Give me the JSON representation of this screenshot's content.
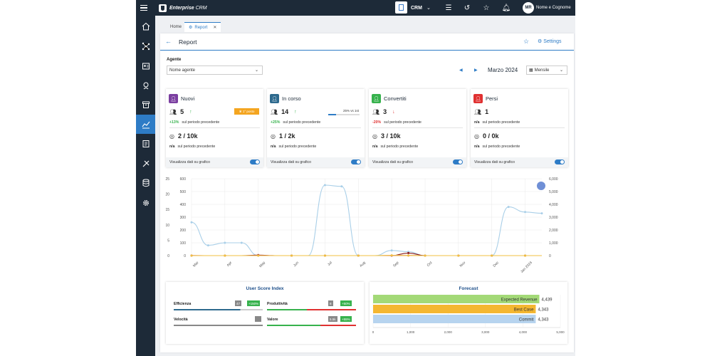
{
  "app": {
    "brand": "Enterprise",
    "brand_suffix": "CRM",
    "module": "CRM",
    "user_initials": "MR",
    "user_name": "Nome e Cognome"
  },
  "tabs": [
    {
      "label": "Home"
    },
    {
      "label": "Report"
    }
  ],
  "header": {
    "title": "Report",
    "settings_label": "Settings"
  },
  "filters": {
    "agent_label": "Agente",
    "agent_value": "Nome agente",
    "month": "Marzo 2024",
    "period": "Mensile"
  },
  "kpis": [
    {
      "name": "Nuovi",
      "color": "#7b3fa0",
      "count": "5",
      "badge": "1° posto",
      "delta": "+13%",
      "delta_color": "#37b24d",
      "delta_text": "sul periodo precedente",
      "target": "2",
      "target_total": "/ 10k",
      "target_delta": "n/a",
      "target_delta_text": "sul periodo precedente",
      "footer": "Visualizza dati su grafico"
    },
    {
      "name": "In corso",
      "color": "#2e6a8e",
      "count": "14",
      "progress_label": "25% vs 1st",
      "progress": 0.25,
      "delta": "+25%",
      "delta_color": "#37b24d",
      "delta_text": "sul periodo precedente",
      "target": "1",
      "target_total": "/ 2k",
      "target_delta": "n/a",
      "target_delta_text": "sul periodo precedente",
      "footer": "Visualizza dati su grafico"
    },
    {
      "name": "Convertiti",
      "color": "#37b24d",
      "count": "3",
      "delta": "-20%",
      "delta_color": "#e03131",
      "delta_text": "sul periodo precedente",
      "target": "3",
      "target_total": "/ 10k",
      "target_delta": "n/a",
      "target_delta_text": "sul periodo precedente",
      "footer": "Visualizza dati su grafico"
    },
    {
      "name": "Persi",
      "color": "#e03131",
      "count": "1",
      "delta": "n/a",
      "delta_color": "#333333",
      "delta_text": "sul periodo precedente",
      "target": "0",
      "target_total": "/ 0k",
      "target_delta": "n/a",
      "target_delta_text": "sul periodo precedente",
      "footer": "Visualizza dati su grafico"
    }
  ],
  "chart_data": [
    {
      "type": "line",
      "categories": [
        "Mar",
        "Apr",
        "May",
        "Jun",
        "Jul",
        "Aug",
        "Sep",
        "Oct",
        "Nov",
        "Dec",
        "Jan 2024"
      ],
      "y_axis_1": {
        "ticks": [
          "0",
          "5",
          "10",
          "15",
          "20",
          "25"
        ]
      },
      "y_axis_2": {
        "ticks": [
          "0",
          "100",
          "200",
          "300",
          "400",
          "500",
          "600"
        ]
      },
      "y_axis_right": {
        "ticks": [
          "0",
          "1,000",
          "2,000",
          "3,000",
          "4,000",
          "5,000",
          "6,000"
        ]
      },
      "series": [
        {
          "color": "#a9cfe8",
          "x": [
            0,
            0.5,
            1,
            1.5,
            2,
            2.5,
            3,
            3.5,
            4,
            4.5,
            5,
            5.5,
            6,
            6.5,
            7,
            7.5,
            8,
            8.5,
            9,
            9.5,
            10,
            10.5
          ],
          "values": [
            2600,
            800,
            1000,
            1000,
            0,
            0,
            0,
            0,
            5500,
            5400,
            0,
            0,
            400,
            300,
            0,
            0,
            0,
            0,
            0,
            3800,
            3400,
            3300
          ]
        },
        {
          "color": "#8b1a1a",
          "x": [
            0,
            0.5,
            1,
            1.5,
            2,
            2.5,
            3,
            3.5,
            4,
            4.5,
            5,
            5.5,
            6,
            6.5,
            7,
            7.5,
            8,
            8.5,
            9,
            9.5,
            10,
            10.5
          ],
          "values": [
            0,
            0,
            0,
            0,
            4,
            0,
            0,
            0,
            0,
            0,
            0,
            0,
            0,
            20,
            0,
            0,
            0,
            0,
            0,
            0,
            0,
            0
          ]
        },
        {
          "color": "#c95b5b",
          "x": [
            0,
            0.5,
            1,
            1.5,
            2,
            2.5,
            3,
            3.5,
            4,
            4.5,
            5,
            5.5,
            6,
            6.5,
            7,
            7.5,
            8,
            8.5,
            9,
            9.5,
            10,
            10.5
          ],
          "values": [
            1,
            0,
            0,
            0,
            1,
            0,
            0,
            0,
            0,
            0,
            0,
            0,
            1,
            1,
            0,
            0,
            0,
            0,
            0,
            0,
            0,
            0
          ]
        },
        {
          "color": "#f0c040",
          "x": [
            0,
            0.5,
            1,
            1.5,
            2,
            2.5,
            3,
            3.5,
            4,
            4.5,
            5,
            5.5,
            6,
            6.5,
            7,
            7.5,
            8,
            8.5,
            9,
            9.5,
            10,
            10.5
          ],
          "values": [
            0,
            0,
            0,
            0,
            0,
            0,
            0,
            0,
            0,
            0,
            0,
            0,
            2,
            1,
            0,
            0,
            0,
            0,
            0,
            0,
            0,
            0
          ]
        }
      ]
    },
    {
      "type": "bar",
      "title": "Forecast",
      "categories": [
        "Expected Revenue",
        "Best Case",
        "Commit"
      ],
      "values": [
        4439,
        4343,
        4343
      ],
      "value_labels": [
        "4,439",
        "4,343",
        "4,343"
      ],
      "colors": [
        "#a3d977",
        "#f4b731",
        "#b7d4ef"
      ],
      "x_ticks": [
        "0",
        "1,000",
        "2,000",
        "3,000",
        "4,000",
        "5,000"
      ],
      "xlim": [
        0,
        5000
      ]
    }
  ],
  "user_score": {
    "title": "User Score Index",
    "items": [
      {
        "label": "Efficienza",
        "score": "47",
        "delta": "+150%",
        "bar_color": "#2e6a8e",
        "fill": 0.75
      },
      {
        "label": "Produttività",
        "score": "8",
        "delta": "+50%",
        "bar_color": "#37b24d",
        "fill": 0.45
      },
      {
        "label": "Velocità",
        "score": "",
        "delta": "",
        "bar_color": "#888888",
        "fill": 1.0
      },
      {
        "label": "Valore",
        "score": "5.5k",
        "delta": "+55%",
        "bar_color": "#37b24d",
        "fill": 0.6
      }
    ]
  }
}
